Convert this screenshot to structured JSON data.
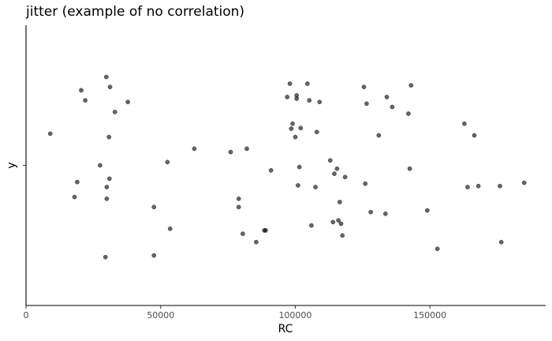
{
  "chart_data": {
    "type": "scatter",
    "title": "jitter (example of no correlation)",
    "xlabel": "RC",
    "ylabel": "y",
    "xlim": [
      0,
      193000
    ],
    "ylim": [
      -0.42,
      0.42
    ],
    "x_ticks": [
      0,
      50000,
      100000,
      150000
    ],
    "x_tick_labels": [
      "0",
      "50000",
      "100000",
      "150000"
    ],
    "y_ticks": [
      0
    ],
    "y_tick_labels": [
      "y"
    ],
    "grid": false,
    "legend": "none",
    "points": [
      {
        "x": 9000,
        "y": 0.095
      },
      {
        "x": 18000,
        "y": -0.095
      },
      {
        "x": 19000,
        "y": -0.05
      },
      {
        "x": 20500,
        "y": 0.225
      },
      {
        "x": 22000,
        "y": 0.195
      },
      {
        "x": 27500,
        "y": 0.0
      },
      {
        "x": 29500,
        "y": -0.275
      },
      {
        "x": 29800,
        "y": 0.265
      },
      {
        "x": 30000,
        "y": -0.065
      },
      {
        "x": 30000,
        "y": -0.1
      },
      {
        "x": 30800,
        "y": 0.085
      },
      {
        "x": 31000,
        "y": -0.04
      },
      {
        "x": 31200,
        "y": 0.235
      },
      {
        "x": 33000,
        "y": 0.16
      },
      {
        "x": 37800,
        "y": 0.19
      },
      {
        "x": 47500,
        "y": -0.125
      },
      {
        "x": 47500,
        "y": -0.27
      },
      {
        "x": 52500,
        "y": 0.01
      },
      {
        "x": 53500,
        "y": -0.19
      },
      {
        "x": 62500,
        "y": 0.05
      },
      {
        "x": 76000,
        "y": 0.04
      },
      {
        "x": 79000,
        "y": -0.1
      },
      {
        "x": 79000,
        "y": -0.125
      },
      {
        "x": 80500,
        "y": -0.205
      },
      {
        "x": 82000,
        "y": 0.05
      },
      {
        "x": 85500,
        "y": -0.23
      },
      {
        "x": 88500,
        "y": -0.195
      },
      {
        "x": 89000,
        "y": -0.195
      },
      {
        "x": 91000,
        "y": -0.015
      },
      {
        "x": 97000,
        "y": 0.205
      },
      {
        "x": 98000,
        "y": 0.245
      },
      {
        "x": 98500,
        "y": 0.11
      },
      {
        "x": 99000,
        "y": 0.125
      },
      {
        "x": 100000,
        "y": 0.085
      },
      {
        "x": 100500,
        "y": 0.21
      },
      {
        "x": 100500,
        "y": 0.2
      },
      {
        "x": 101000,
        "y": -0.06
      },
      {
        "x": 101500,
        "y": -0.005
      },
      {
        "x": 102000,
        "y": 0.112
      },
      {
        "x": 104500,
        "y": 0.245
      },
      {
        "x": 105200,
        "y": 0.195
      },
      {
        "x": 106000,
        "y": -0.18
      },
      {
        "x": 107500,
        "y": -0.065
      },
      {
        "x": 108000,
        "y": 0.1
      },
      {
        "x": 109000,
        "y": 0.19
      },
      {
        "x": 113000,
        "y": 0.015
      },
      {
        "x": 114000,
        "y": -0.17
      },
      {
        "x": 114500,
        "y": -0.025
      },
      {
        "x": 115500,
        "y": -0.01
      },
      {
        "x": 116000,
        "y": -0.165
      },
      {
        "x": 116500,
        "y": -0.11
      },
      {
        "x": 117000,
        "y": -0.175
      },
      {
        "x": 117500,
        "y": -0.21
      },
      {
        "x": 118500,
        "y": -0.035
      },
      {
        "x": 125500,
        "y": 0.235
      },
      {
        "x": 126000,
        "y": -0.055
      },
      {
        "x": 126500,
        "y": 0.185
      },
      {
        "x": 128000,
        "y": -0.14
      },
      {
        "x": 131000,
        "y": 0.09
      },
      {
        "x": 133500,
        "y": -0.145
      },
      {
        "x": 134000,
        "y": 0.205
      },
      {
        "x": 136000,
        "y": 0.175
      },
      {
        "x": 142000,
        "y": 0.155
      },
      {
        "x": 142500,
        "y": -0.01
      },
      {
        "x": 143000,
        "y": 0.24
      },
      {
        "x": 149000,
        "y": -0.135
      },
      {
        "x": 152800,
        "y": -0.25
      },
      {
        "x": 162800,
        "y": 0.125
      },
      {
        "x": 164000,
        "y": -0.065
      },
      {
        "x": 166500,
        "y": 0.09
      },
      {
        "x": 168000,
        "y": -0.062
      },
      {
        "x": 176000,
        "y": -0.062
      },
      {
        "x": 176500,
        "y": -0.23
      },
      {
        "x": 185000,
        "y": -0.052
      }
    ]
  }
}
